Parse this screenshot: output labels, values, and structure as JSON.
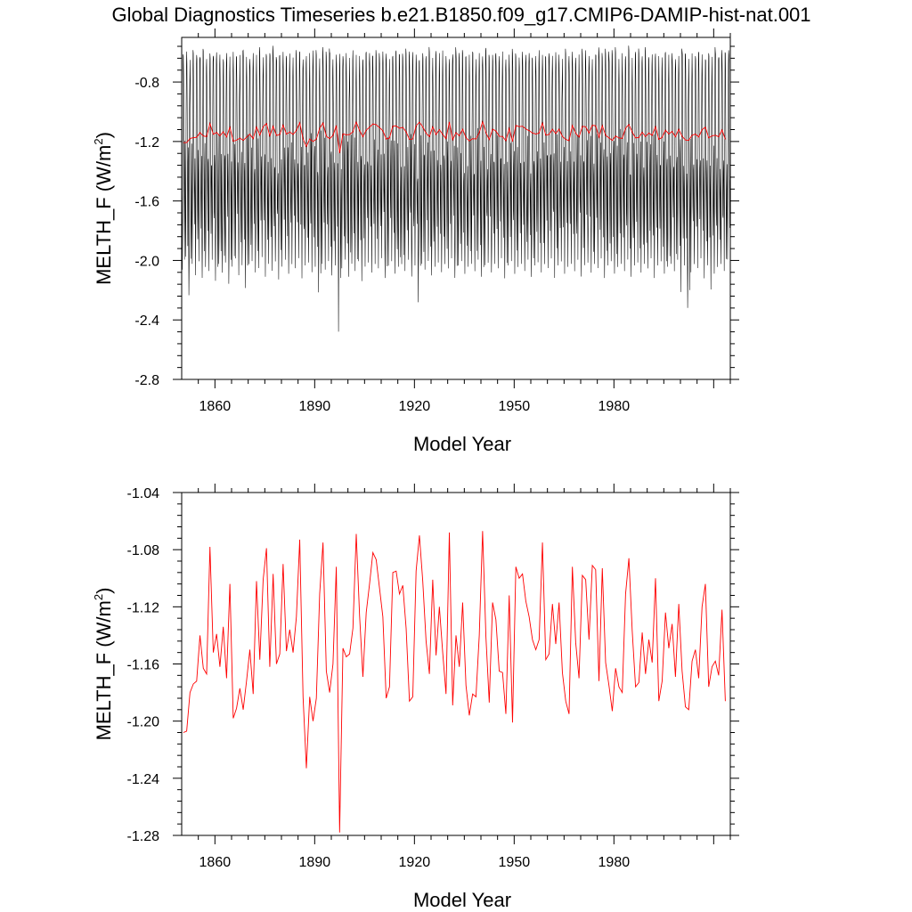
{
  "figure": {
    "title": "Global Diagnostics Timeseries b.e21.B1850.f09_g17.CMIP6-DAMIP-hist-nat.001"
  },
  "colors": {
    "monthly_line": "#000000",
    "annual_line": "#ff0000",
    "frame": "#000000"
  },
  "chart_data": [
    {
      "type": "line",
      "title": "Global Diagnostics Timeseries b.e21.B1850.f09_g17.CMIP6-DAMIP-hist-nat.001",
      "xlabel": "Model Year",
      "ylabel_main": "MELTH_F (W/m",
      "ylabel_sup": "2",
      "ylabel_tail": ")",
      "xlim": [
        1850,
        2015
      ],
      "ylim": [
        -2.8,
        -0.5
      ],
      "xticks": [
        1860,
        1890,
        1920,
        1950,
        1980
      ],
      "xtick_labels": [
        "1860",
        "1890",
        "1920",
        "1950",
        "1980"
      ],
      "yticks": [
        -2.8,
        -2.4,
        -2.0,
        -1.6,
        -1.2,
        -0.8
      ],
      "ytick_labels": [
        "-2.8",
        "-2.4",
        "-2.0",
        "-1.6",
        "-1.2",
        "-0.8"
      ],
      "legend": "none",
      "grid": false,
      "series": [
        {
          "kind": "monthly",
          "color": "#000000",
          "start_year": 1850,
          "months_per_year": 12,
          "annual_max": [
            -0.58,
            -0.55,
            -0.6,
            -0.56,
            -0.57,
            -0.59,
            -0.54,
            -0.6,
            -0.56,
            -0.58,
            -0.55,
            -0.57,
            -0.6,
            -0.56,
            -0.58,
            -0.55,
            -0.59,
            -0.57,
            -0.54,
            -0.58,
            -0.6,
            -0.56,
            -0.57,
            -0.55,
            -0.59,
            -0.58,
            -0.56,
            -0.54,
            -0.6,
            -0.57,
            -0.55,
            -0.58,
            -0.56,
            -0.59,
            -0.57,
            -0.55,
            -0.6,
            -0.58,
            -0.56,
            -0.54,
            -0.57,
            -0.59,
            -0.55,
            -0.58,
            -0.56,
            -0.6,
            -0.57,
            -0.55,
            -0.58,
            -0.56,
            -0.59,
            -0.54,
            -0.57,
            -0.58,
            -0.6,
            -0.55,
            -0.56,
            -0.58,
            -0.57,
            -0.59,
            -0.55,
            -0.56,
            -0.6,
            -0.58,
            -0.54,
            -0.57,
            -0.59,
            -0.56,
            -0.58,
            -0.55,
            -0.57,
            -0.6,
            -0.56,
            -0.58,
            -0.55,
            -0.59,
            -0.57,
            -0.56,
            -0.54,
            -0.58,
            -0.6,
            -0.57,
            -0.55,
            -0.59,
            -0.56,
            -0.58,
            -0.57,
            -0.55,
            -0.6,
            -0.56,
            -0.58,
            -0.54,
            -0.59,
            -0.57,
            -0.56,
            -0.58,
            -0.55,
            -0.6,
            -0.57,
            -0.56,
            -0.58,
            -0.59,
            -0.55,
            -0.57,
            -0.56,
            -0.6,
            -0.58,
            -0.54,
            -0.57,
            -0.59,
            -0.56,
            -0.58,
            -0.55,
            -0.57,
            -0.6,
            -0.56,
            -0.58,
            -0.55,
            -0.59,
            -0.57,
            -0.56,
            -0.54,
            -0.58,
            -0.6,
            -0.57,
            -0.55,
            -0.59,
            -0.56,
            -0.58,
            -0.57,
            -0.55,
            -0.6,
            -0.56,
            -0.58,
            -0.54,
            -0.59,
            -0.57,
            -0.56,
            -0.58,
            -0.55,
            -0.6,
            -0.57,
            -0.56,
            -0.58,
            -0.59,
            -0.55,
            -0.57,
            -0.56,
            -0.6,
            -0.58,
            -0.54,
            -0.57,
            -0.59,
            -0.56,
            -0.58,
            -0.55,
            -0.57,
            -0.6,
            -0.56,
            -0.58,
            -0.55,
            -0.59,
            -0.57,
            -0.56,
            -0.54
          ],
          "annual_min": [
            -2.14,
            -2.05,
            -2.32,
            -2.1,
            -2.18,
            -2.08,
            -2.2,
            -2.12,
            -2.15,
            -2.07,
            -2.22,
            -2.1,
            -2.16,
            -2.09,
            -2.24,
            -2.12,
            -2.06,
            -2.18,
            -2.11,
            -2.27,
            -2.1,
            -2.08,
            -2.16,
            -2.13,
            -2.05,
            -2.19,
            -2.1,
            -2.15,
            -2.08,
            -2.21,
            -2.12,
            -2.07,
            -2.17,
            -2.1,
            -2.13,
            -2.06,
            -2.2,
            -2.11,
            -2.09,
            -2.16,
            -2.12,
            -2.3,
            -2.1,
            -2.14,
            -2.08,
            -2.18,
            -2.11,
            -2.58,
            -2.13,
            -2.07,
            -2.19,
            -2.1,
            -2.15,
            -2.08,
            -2.22,
            -2.12,
            -2.09,
            -2.16,
            -2.1,
            -2.13,
            -2.06,
            -2.2,
            -2.11,
            -2.08,
            -2.17,
            -2.12,
            -2.1,
            -2.15,
            -2.07,
            -2.19,
            -2.11,
            -2.37,
            -2.1,
            -2.14,
            -2.08,
            -2.18,
            -2.12,
            -2.09,
            -2.16,
            -2.1,
            -2.13,
            -2.06,
            -2.2,
            -2.11,
            -2.08,
            -2.17,
            -2.12,
            -2.1,
            -2.15,
            -2.07,
            -2.19,
            -2.11,
            -2.09,
            -2.16,
            -2.1,
            -2.13,
            -2.06,
            -2.2,
            -2.11,
            -2.08,
            -2.17,
            -2.12,
            -2.1,
            -2.15,
            -2.07,
            -2.19,
            -2.11,
            -2.09,
            -2.16,
            -2.1,
            -2.13,
            -2.06,
            -2.2,
            -2.11,
            -2.08,
            -2.17,
            -2.12,
            -2.1,
            -2.15,
            -2.07,
            -2.19,
            -2.11,
            -2.09,
            -2.16,
            -2.1,
            -2.13,
            -2.06,
            -2.2,
            -2.11,
            -2.08,
            -2.17,
            -2.12,
            -2.1,
            -2.15,
            -2.07,
            -2.19,
            -2.11,
            -2.09,
            -2.16,
            -2.1,
            -2.13,
            -2.06,
            -2.2,
            -2.11,
            -2.08,
            -2.17,
            -2.12,
            -2.1,
            -2.15,
            -2.07,
            -2.3,
            -2.11,
            -2.41,
            -2.16,
            -2.1,
            -2.13,
            -2.06,
            -2.2,
            -2.11,
            -2.28,
            -2.17,
            -2.12,
            -2.1,
            -2.15,
            -2.07
          ]
        },
        {
          "kind": "annual",
          "color": "#ff0000",
          "start_year": 1850,
          "values": [
            -1.208,
            -1.207,
            -1.18,
            -1.174,
            -1.172,
            -1.14,
            -1.163,
            -1.167,
            -1.078,
            -1.152,
            -1.139,
            -1.162,
            -1.134,
            -1.17,
            -1.104,
            -1.198,
            -1.191,
            -1.177,
            -1.192,
            -1.172,
            -1.15,
            -1.181,
            -1.102,
            -1.157,
            -1.101,
            -1.079,
            -1.162,
            -1.097,
            -1.16,
            -1.153,
            -1.09,
            -1.151,
            -1.136,
            -1.152,
            -1.127,
            -1.073,
            -1.183,
            -1.233,
            -1.183,
            -1.2,
            -1.184,
            -1.111,
            -1.075,
            -1.165,
            -1.18,
            -1.16,
            -1.092,
            -1.278,
            -1.149,
            -1.155,
            -1.153,
            -1.135,
            -1.069,
            -1.126,
            -1.169,
            -1.124,
            -1.104,
            -1.082,
            -1.087,
            -1.107,
            -1.127,
            -1.184,
            -1.176,
            -1.096,
            -1.095,
            -1.111,
            -1.105,
            -1.135,
            -1.186,
            -1.183,
            -1.095,
            -1.07,
            -1.102,
            -1.144,
            -1.167,
            -1.101,
            -1.154,
            -1.12,
            -1.152,
            -1.181,
            -1.068,
            -1.189,
            -1.14,
            -1.162,
            -1.117,
            -1.175,
            -1.196,
            -1.181,
            -1.183,
            -1.14,
            -1.067,
            -1.141,
            -1.187,
            -1.117,
            -1.129,
            -1.165,
            -1.166,
            -1.195,
            -1.112,
            -1.201,
            -1.092,
            -1.1,
            -1.097,
            -1.116,
            -1.127,
            -1.143,
            -1.15,
            -1.143,
            -1.075,
            -1.157,
            -1.153,
            -1.118,
            -1.146,
            -1.117,
            -1.166,
            -1.186,
            -1.195,
            -1.092,
            -1.145,
            -1.17,
            -1.098,
            -1.101,
            -1.143,
            -1.091,
            -1.094,
            -1.172,
            -1.093,
            -1.159,
            -1.175,
            -1.193,
            -1.163,
            -1.176,
            -1.18,
            -1.111,
            -1.086,
            -1.137,
            -1.176,
            -1.173,
            -1.138,
            -1.167,
            -1.143,
            -1.159,
            -1.1,
            -1.186,
            -1.172,
            -1.124,
            -1.149,
            -1.132,
            -1.169,
            -1.118,
            -1.165,
            -1.19,
            -1.192,
            -1.158,
            -1.15,
            -1.17,
            -1.12,
            -1.104,
            -1.176,
            -1.162,
            -1.158,
            -1.168,
            -1.122,
            -1.186
          ]
        }
      ]
    },
    {
      "type": "line",
      "title": "",
      "xlabel": "Model Year",
      "ylabel_main": "MELTH_F (W/m",
      "ylabel_sup": "2",
      "ylabel_tail": ")",
      "xlim": [
        1850,
        2015
      ],
      "ylim": [
        -1.28,
        -1.04
      ],
      "xticks": [
        1860,
        1890,
        1920,
        1950,
        1980
      ],
      "xtick_labels": [
        "1860",
        "1890",
        "1920",
        "1950",
        "1980"
      ],
      "yticks": [
        -1.28,
        -1.24,
        -1.2,
        -1.16,
        -1.12,
        -1.08,
        -1.04
      ],
      "ytick_labels": [
        "-1.28",
        "-1.24",
        "-1.20",
        "-1.16",
        "-1.12",
        "-1.08",
        "-1.04"
      ],
      "legend": "none",
      "grid": false,
      "series": [
        {
          "kind": "annual",
          "color": "#ff0000",
          "start_year": 1850,
          "values": [
            -1.208,
            -1.207,
            -1.18,
            -1.174,
            -1.172,
            -1.14,
            -1.163,
            -1.167,
            -1.078,
            -1.152,
            -1.139,
            -1.162,
            -1.134,
            -1.17,
            -1.104,
            -1.198,
            -1.191,
            -1.177,
            -1.192,
            -1.172,
            -1.15,
            -1.181,
            -1.102,
            -1.157,
            -1.101,
            -1.079,
            -1.162,
            -1.097,
            -1.16,
            -1.153,
            -1.09,
            -1.151,
            -1.136,
            -1.152,
            -1.127,
            -1.073,
            -1.183,
            -1.233,
            -1.183,
            -1.2,
            -1.184,
            -1.111,
            -1.075,
            -1.165,
            -1.18,
            -1.16,
            -1.092,
            -1.278,
            -1.149,
            -1.155,
            -1.153,
            -1.135,
            -1.069,
            -1.126,
            -1.169,
            -1.124,
            -1.104,
            -1.082,
            -1.087,
            -1.107,
            -1.127,
            -1.184,
            -1.176,
            -1.096,
            -1.095,
            -1.111,
            -1.105,
            -1.135,
            -1.186,
            -1.183,
            -1.095,
            -1.07,
            -1.102,
            -1.144,
            -1.167,
            -1.101,
            -1.154,
            -1.12,
            -1.152,
            -1.181,
            -1.068,
            -1.189,
            -1.14,
            -1.162,
            -1.117,
            -1.175,
            -1.196,
            -1.181,
            -1.183,
            -1.14,
            -1.067,
            -1.141,
            -1.187,
            -1.117,
            -1.129,
            -1.165,
            -1.166,
            -1.195,
            -1.112,
            -1.201,
            -1.092,
            -1.1,
            -1.097,
            -1.116,
            -1.127,
            -1.143,
            -1.15,
            -1.143,
            -1.075,
            -1.157,
            -1.153,
            -1.118,
            -1.146,
            -1.117,
            -1.166,
            -1.186,
            -1.195,
            -1.092,
            -1.145,
            -1.17,
            -1.098,
            -1.101,
            -1.143,
            -1.091,
            -1.094,
            -1.172,
            -1.093,
            -1.159,
            -1.175,
            -1.193,
            -1.163,
            -1.176,
            -1.18,
            -1.111,
            -1.086,
            -1.137,
            -1.176,
            -1.173,
            -1.138,
            -1.167,
            -1.143,
            -1.159,
            -1.1,
            -1.186,
            -1.172,
            -1.124,
            -1.149,
            -1.132,
            -1.169,
            -1.118,
            -1.165,
            -1.19,
            -1.192,
            -1.158,
            -1.15,
            -1.17,
            -1.12,
            -1.104,
            -1.176,
            -1.162,
            -1.158,
            -1.168,
            -1.122,
            -1.186
          ]
        }
      ]
    }
  ]
}
